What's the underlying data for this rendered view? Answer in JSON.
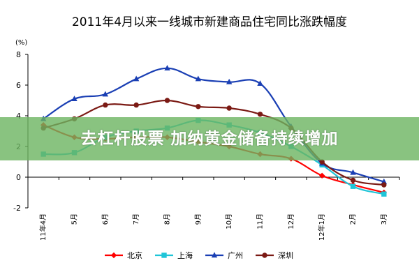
{
  "chart_data": {
    "type": "line",
    "title": "2011年4月以来一线城市新建商品住宅同比涨跌幅度",
    "unit_label": "(%)",
    "categories": [
      "11年4月",
      "5月",
      "6月",
      "7月",
      "8月",
      "9月",
      "10月",
      "11月",
      "12月",
      "12年1月",
      "2月",
      "3月"
    ],
    "ylim": [
      -2,
      8
    ],
    "yticks": [
      "-2",
      "0",
      "2",
      "4",
      "6",
      "8"
    ],
    "grid": false,
    "legend_position": "bottom",
    "series": [
      {
        "name": "北京",
        "color": "#ff0000",
        "marker": "diamond",
        "values": [
          3.4,
          2.6,
          2.5,
          2.6,
          2.6,
          2.3,
          2.0,
          1.5,
          1.2,
          0.1,
          -0.5,
          -1.0
        ]
      },
      {
        "name": "上海",
        "color": "#1fc5d8",
        "marker": "square",
        "values": [
          1.5,
          1.6,
          2.6,
          3.0,
          3.2,
          3.7,
          3.4,
          2.9,
          2.0,
          0.8,
          -0.6,
          -1.1
        ]
      },
      {
        "name": "广州",
        "color": "#1a3fb4",
        "marker": "triangle",
        "values": [
          3.8,
          5.1,
          5.4,
          6.4,
          7.1,
          6.4,
          6.2,
          6.1,
          3.3,
          0.9,
          0.3,
          -0.3
        ]
      },
      {
        "name": "深圳",
        "color": "#7b1a14",
        "marker": "circle",
        "values": [
          3.2,
          3.8,
          4.7,
          4.7,
          5.0,
          4.6,
          4.5,
          4.1,
          3.2,
          1.0,
          -0.2,
          -0.5
        ]
      }
    ]
  },
  "overlay": {
    "banner_text": "去杠杆股票 加纳黄金储备持续增加"
  }
}
